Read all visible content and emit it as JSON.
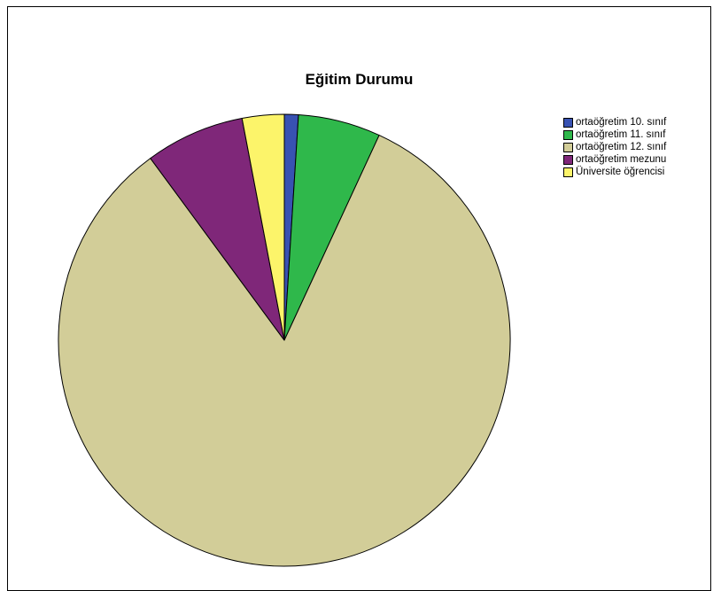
{
  "chart_data": {
    "type": "pie",
    "title": "Eğitim Durumu",
    "start_angle_deg": 0,
    "direction": "clockwise",
    "legend_position": "top-right",
    "colors": [
      "#3852b2",
      "#2fb84b",
      "#d2cd98",
      "#7f2779",
      "#fcf46a"
    ],
    "categories": [
      "ortaöğretim 10. sınıf",
      "ortaöğretim 11. sınıf",
      "ortaöğretim 12. sınıf",
      "ortaöğretim mezunu",
      "Üniversite öğrencisi"
    ],
    "values": [
      1.0,
      5.9,
      83.0,
      7.1,
      3.0
    ]
  }
}
